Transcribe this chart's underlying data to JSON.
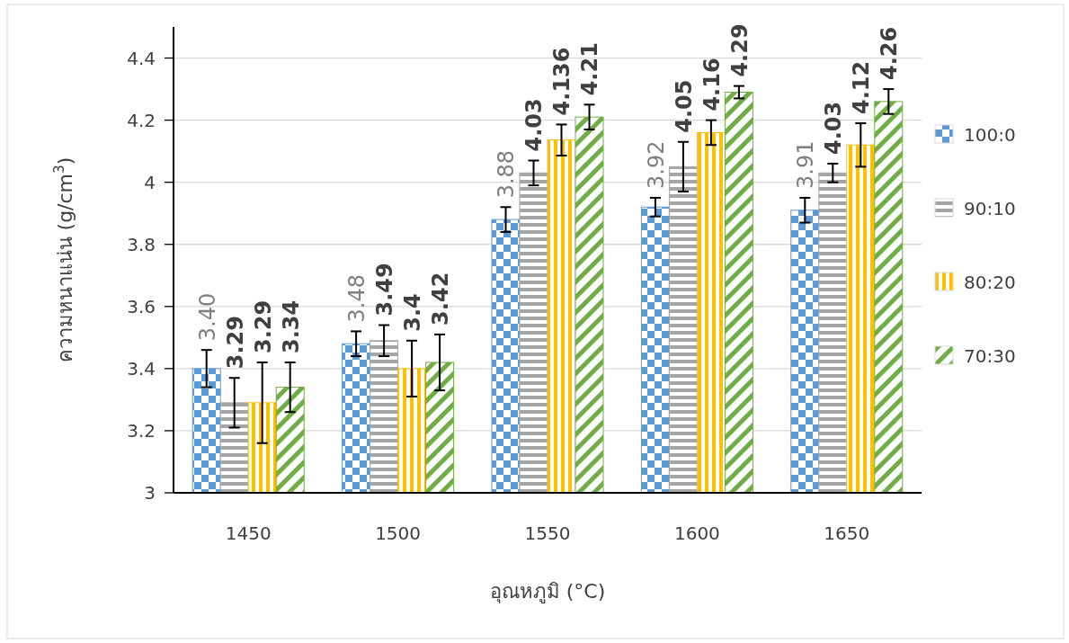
{
  "chart_data": {
    "type": "bar",
    "xlabel": "อุณหภูมิ (°C)",
    "ylabel": "ความหนาแน่น (g/cm$^{3}$)",
    "categories": [
      "1450",
      "1500",
      "1550",
      "1600",
      "1650"
    ],
    "ylim": [
      3,
      4.5
    ],
    "yticks": [
      3,
      3.2,
      3.4,
      3.6,
      3.8,
      4,
      4.2,
      4.4
    ],
    "grid": "y",
    "legend": "right",
    "series": [
      {
        "name": "100:0",
        "color": "#5b9bd5",
        "values": [
          3.4,
          3.48,
          3.88,
          3.92,
          3.91
        ],
        "errors": [
          0.06,
          0.04,
          0.04,
          0.03,
          0.04
        ],
        "value_labels": [
          "3.40",
          "3.48",
          "3.88",
          "3.92",
          "3.91"
        ]
      },
      {
        "name": "90:10",
        "color": "#a5a5a5",
        "values": [
          3.29,
          3.49,
          4.03,
          4.05,
          4.03
        ],
        "errors": [
          0.08,
          0.05,
          0.04,
          0.08,
          0.03
        ],
        "value_labels": [
          "3.29",
          "3.49",
          "4.03",
          "4.05",
          "4.03"
        ]
      },
      {
        "name": "80:20",
        "color": "#ffc000",
        "values": [
          3.29,
          3.4,
          4.136,
          4.16,
          4.12
        ],
        "errors": [
          0.13,
          0.09,
          0.05,
          0.04,
          0.07
        ],
        "value_labels": [
          "3.29",
          "3.4",
          "4.136",
          "4.16",
          "4.12"
        ]
      },
      {
        "name": "70:30",
        "color": "#70ad47",
        "values": [
          3.34,
          3.42,
          4.21,
          4.29,
          4.26
        ],
        "errors": [
          0.08,
          0.09,
          0.04,
          0.02,
          0.04
        ],
        "value_labels": [
          "3.34",
          "3.42",
          "4.21",
          "4.29",
          "4.26"
        ]
      }
    ]
  }
}
